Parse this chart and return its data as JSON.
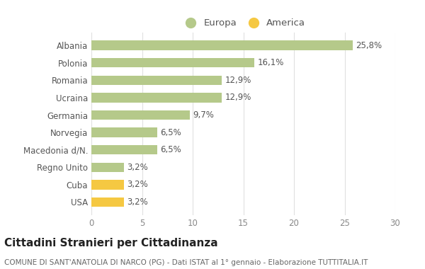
{
  "categories": [
    "Albania",
    "Polonia",
    "Romania",
    "Ucraina",
    "Germania",
    "Norvegia",
    "Macedonia d/N.",
    "Regno Unito",
    "Cuba",
    "USA"
  ],
  "values": [
    25.8,
    16.1,
    12.9,
    12.9,
    9.7,
    6.5,
    6.5,
    3.2,
    3.2,
    3.2
  ],
  "labels": [
    "25,8%",
    "16,1%",
    "12,9%",
    "12,9%",
    "9,7%",
    "6,5%",
    "6,5%",
    "3,2%",
    "3,2%",
    "3,2%"
  ],
  "colors": [
    "#b5c98a",
    "#b5c98a",
    "#b5c98a",
    "#b5c98a",
    "#b5c98a",
    "#b5c98a",
    "#b5c98a",
    "#b5c98a",
    "#f5c842",
    "#f5c842"
  ],
  "legend_europa_color": "#b5c98a",
  "legend_america_color": "#f5c842",
  "title": "Cittadini Stranieri per Cittadinanza",
  "subtitle": "COMUNE DI SANT'ANATOLIA DI NARCO (PG) - Dati ISTAT al 1° gennaio - Elaborazione TUTTITALIA.IT",
  "xlim": [
    0,
    30
  ],
  "xticks": [
    0,
    5,
    10,
    15,
    20,
    25,
    30
  ],
  "background_color": "#ffffff",
  "bar_height": 0.55,
  "grid_color": "#e0e0e0",
  "title_fontsize": 11,
  "subtitle_fontsize": 7.5,
  "label_fontsize": 8.5,
  "tick_fontsize": 8.5,
  "legend_fontsize": 9.5
}
